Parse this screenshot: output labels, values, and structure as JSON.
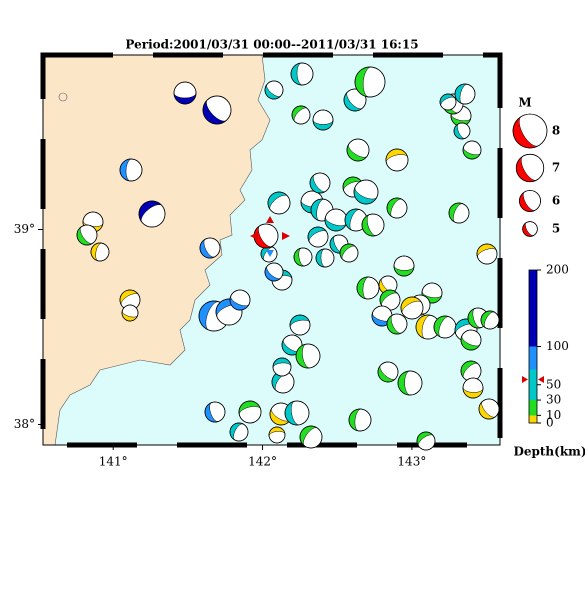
{
  "map": {
    "title": "Period:2001/03/31 00:00--2011/03/31 16:15",
    "xlim": [
      140.53,
      143.59
    ],
    "ylim": [
      37.895,
      39.895
    ],
    "xticks": [
      {
        "value": 141,
        "label": "141°"
      },
      {
        "value": 142,
        "label": "142°"
      },
      {
        "value": 143,
        "label": "143°"
      }
    ],
    "yticks": [
      {
        "value": 38,
        "label": "38°"
      },
      {
        "value": 39,
        "label": "39°"
      }
    ]
  },
  "magnitude_legend": {
    "title": "M",
    "values": [
      8,
      7,
      6,
      5
    ],
    "color": "#ff0000"
  },
  "depth_scale": {
    "title": "Depth(km)",
    "lim": [
      0,
      200
    ],
    "ticks": [
      0,
      10,
      30,
      50,
      100,
      200
    ]
  }
}
